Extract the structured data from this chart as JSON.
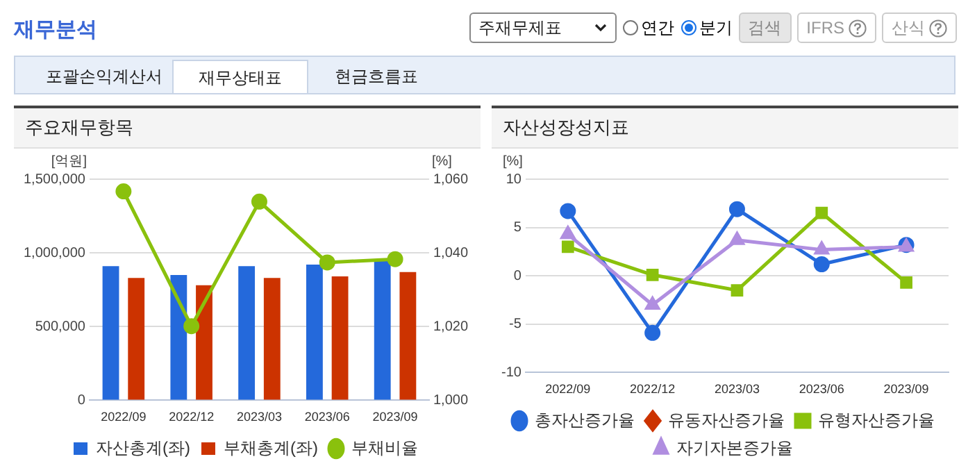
{
  "chart_data": [
    {
      "type": "other",
      "title": "재무분석",
      "annotations": [
        "주재무제표",
        "연간",
        "분기",
        "검색",
        "IFRS",
        "산식",
        "포괄손익계산서",
        "재무상태표",
        "현금흐름표"
      ]
    },
    {
      "type": "bar",
      "title": "주요재무항목",
      "categories": [
        "2022/09",
        "2022/12",
        "2023/03",
        "2023/06",
        "2023/09"
      ],
      "ylabel": "[억원]",
      "y2label": "[%]",
      "series": [
        {
          "name": "자산총계(좌)",
          "color": "#2469db",
          "values": [
            910000,
            850000,
            910000,
            920000,
            950000
          ]
        },
        {
          "name": "부채총계(좌)",
          "color": "#cc3300",
          "values": [
            830000,
            780000,
            830000,
            840000,
            870000
          ]
        },
        {
          "name": "부채비율",
          "type": "line",
          "axis": "y2",
          "marker": "circle",
          "color": "#8ac10d",
          "values": [
            1056.7,
            1020.1,
            1053.9,
            1037.4,
            1038.3
          ]
        }
      ],
      "ylim": [
        0,
        1500000
      ],
      "yticks": [
        {
          "value": 0,
          "label": "0"
        },
        {
          "value": 500000,
          "label": "500,000"
        },
        {
          "value": 1000000,
          "label": "1,000,000"
        },
        {
          "value": 1500000,
          "label": "1,500,000"
        }
      ],
      "y2lim": [
        1000,
        1060
      ],
      "y2ticks": [
        {
          "value": 1000,
          "label": "1,000"
        },
        {
          "value": 1020,
          "label": "1,020"
        },
        {
          "value": 1040,
          "label": "1,040"
        },
        {
          "value": 1060,
          "label": "1,060"
        }
      ],
      "grid": "y",
      "legend": "bottom"
    },
    {
      "type": "line",
      "title": "자산성장성지표",
      "categories": [
        "2022/09",
        "2022/12",
        "2023/03",
        "2023/06",
        "2023/09"
      ],
      "ylabel": "[%]",
      "series": [
        {
          "name": "총자산증가율",
          "marker": "circle",
          "color": "#2469db",
          "values": [
            6.7,
            -5.9,
            6.9,
            1.2,
            3.2
          ]
        },
        {
          "name": "유동자산증가율",
          "marker": "diamond",
          "color": "#cc3300",
          "values": [
            null,
            null,
            null,
            null,
            null
          ]
        },
        {
          "name": "유형자산증가율",
          "marker": "square",
          "color": "#8ac10d",
          "values": [
            3.0,
            0.1,
            -1.5,
            6.5,
            -0.7
          ]
        },
        {
          "name": "자기자본증가율",
          "marker": "triangle",
          "color": "#b08ee0",
          "values": [
            4.3,
            -3.0,
            3.7,
            2.7,
            3.0
          ]
        }
      ],
      "ylim": [
        -10,
        10
      ],
      "yticks": [
        -10,
        -5,
        0,
        5,
        10
      ],
      "grid": "y",
      "legend": "bottom"
    }
  ]
}
